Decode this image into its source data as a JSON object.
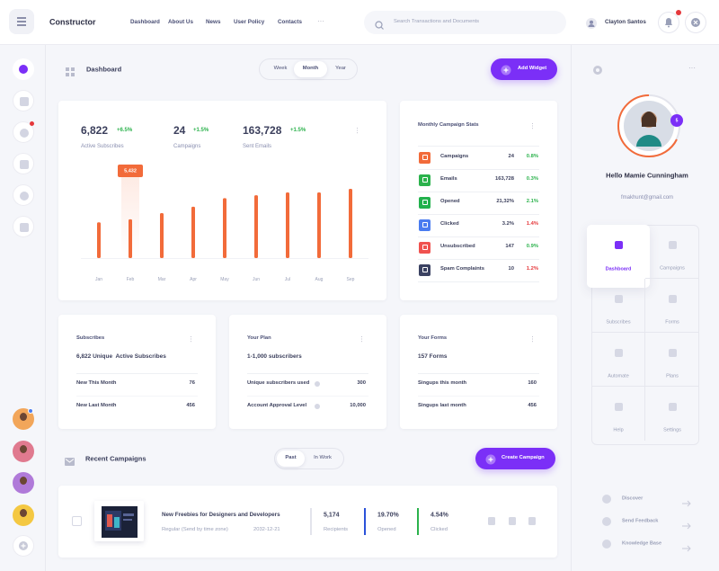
{
  "topbar": {
    "brand": "Constructor",
    "nav": [
      "Dashboard",
      "About Us",
      "News",
      "User Policy",
      "Contacts"
    ],
    "more": "···",
    "search_placeholder": "Search Transactions and Documents",
    "user_name": "Clayton Santos"
  },
  "toolbar": {
    "title": "Dashboard",
    "periods": [
      "Week",
      "Month",
      "Year"
    ],
    "add_button": "Add Widget"
  },
  "summary": {
    "stats": [
      {
        "value": "6,822",
        "change": "+6.5%",
        "label": "Active Subscribes"
      },
      {
        "value": "24",
        "change": "+1.5%",
        "label": "Campaigns"
      },
      {
        "value": "163,728",
        "change": "+1.5%",
        "label": "Sent Emails"
      }
    ],
    "chart": {
      "type": "bar",
      "categories": [
        "Jan",
        "Feb",
        "Mar",
        "Apr",
        "May",
        "Jun",
        "Jul",
        "Aug",
        "Sep"
      ],
      "values": [
        5000,
        5432,
        6300,
        7200,
        8400,
        8800,
        9200,
        9200,
        9700
      ],
      "value_labels": [
        null,
        "5,432",
        null,
        null,
        null,
        null,
        null,
        null,
        null
      ],
      "color": "#f26b3a"
    }
  },
  "campaign_stats": {
    "title": "Monthly Campaign Stats",
    "rows": [
      {
        "label": "Campaigns",
        "value": "24",
        "change": "0.8%",
        "color": "#2bb24c",
        "icon_color": "#f26b3a"
      },
      {
        "label": "Emails",
        "value": "163,728",
        "change": "0.3%",
        "color": "#2bb24c",
        "icon_color": "#2bb24c"
      },
      {
        "label": "Opened",
        "value": "21,32%",
        "change": "2.1%",
        "color": "#2bb24c",
        "icon_color": "#22b14c"
      },
      {
        "label": "Clicked",
        "value": "3.2%",
        "change": "1.4%",
        "color": "#e5383b",
        "icon_color": "#4a7cf0"
      },
      {
        "label": "Unsubscribed",
        "value": "147",
        "change": "0.9%",
        "color": "#2bb24c",
        "icon_color": "#f0524f"
      },
      {
        "label": "Spam Complaints",
        "value": "10",
        "change": "1.2%",
        "color": "#e5383b",
        "icon_color": "#3b4262"
      }
    ]
  },
  "cards": [
    {
      "title": "Subscribes",
      "headline": "6,822 Unique  Active Subscribes",
      "rows": [
        [
          "New This Month",
          "76"
        ],
        [
          "New Last Month",
          "456"
        ]
      ]
    },
    {
      "title": "Your Plan",
      "headline": "1-1,000 subscribers",
      "rows": [
        [
          "Unique subscribers used",
          "300"
        ],
        [
          "Account Approval Level",
          "10,000"
        ]
      ]
    },
    {
      "title": "Your Forms",
      "headline": "157 Forms",
      "rows": [
        [
          "Singups this month",
          "160"
        ],
        [
          "Singups last month",
          "456"
        ]
      ]
    }
  ],
  "recent": {
    "title": "Recent Campaigns",
    "tabs": [
      "Past",
      "In Work"
    ],
    "create_button": "Create Campaign",
    "campaign": {
      "name": "New Freebies for Designers and Developers",
      "type": "Regular (Send by time zone)",
      "date": "2032-12-21",
      "metrics": [
        {
          "value": "5,174",
          "label": "Recipients"
        },
        {
          "value": "19.70%",
          "label": "Opened"
        },
        {
          "value": "4.54%",
          "label": "Clicked"
        }
      ]
    }
  },
  "profile": {
    "badge": "5",
    "greeting": "Hello Mamie Cunningham",
    "email": "fmakhunt@gmail.com",
    "menu": [
      "Dashboard",
      "Campaigns",
      "Subscribes",
      "Forms",
      "Automate",
      "Plans",
      "Help",
      "Settings"
    ],
    "links": [
      "Discover",
      "Send Feedback",
      "Knowledge Base"
    ]
  }
}
